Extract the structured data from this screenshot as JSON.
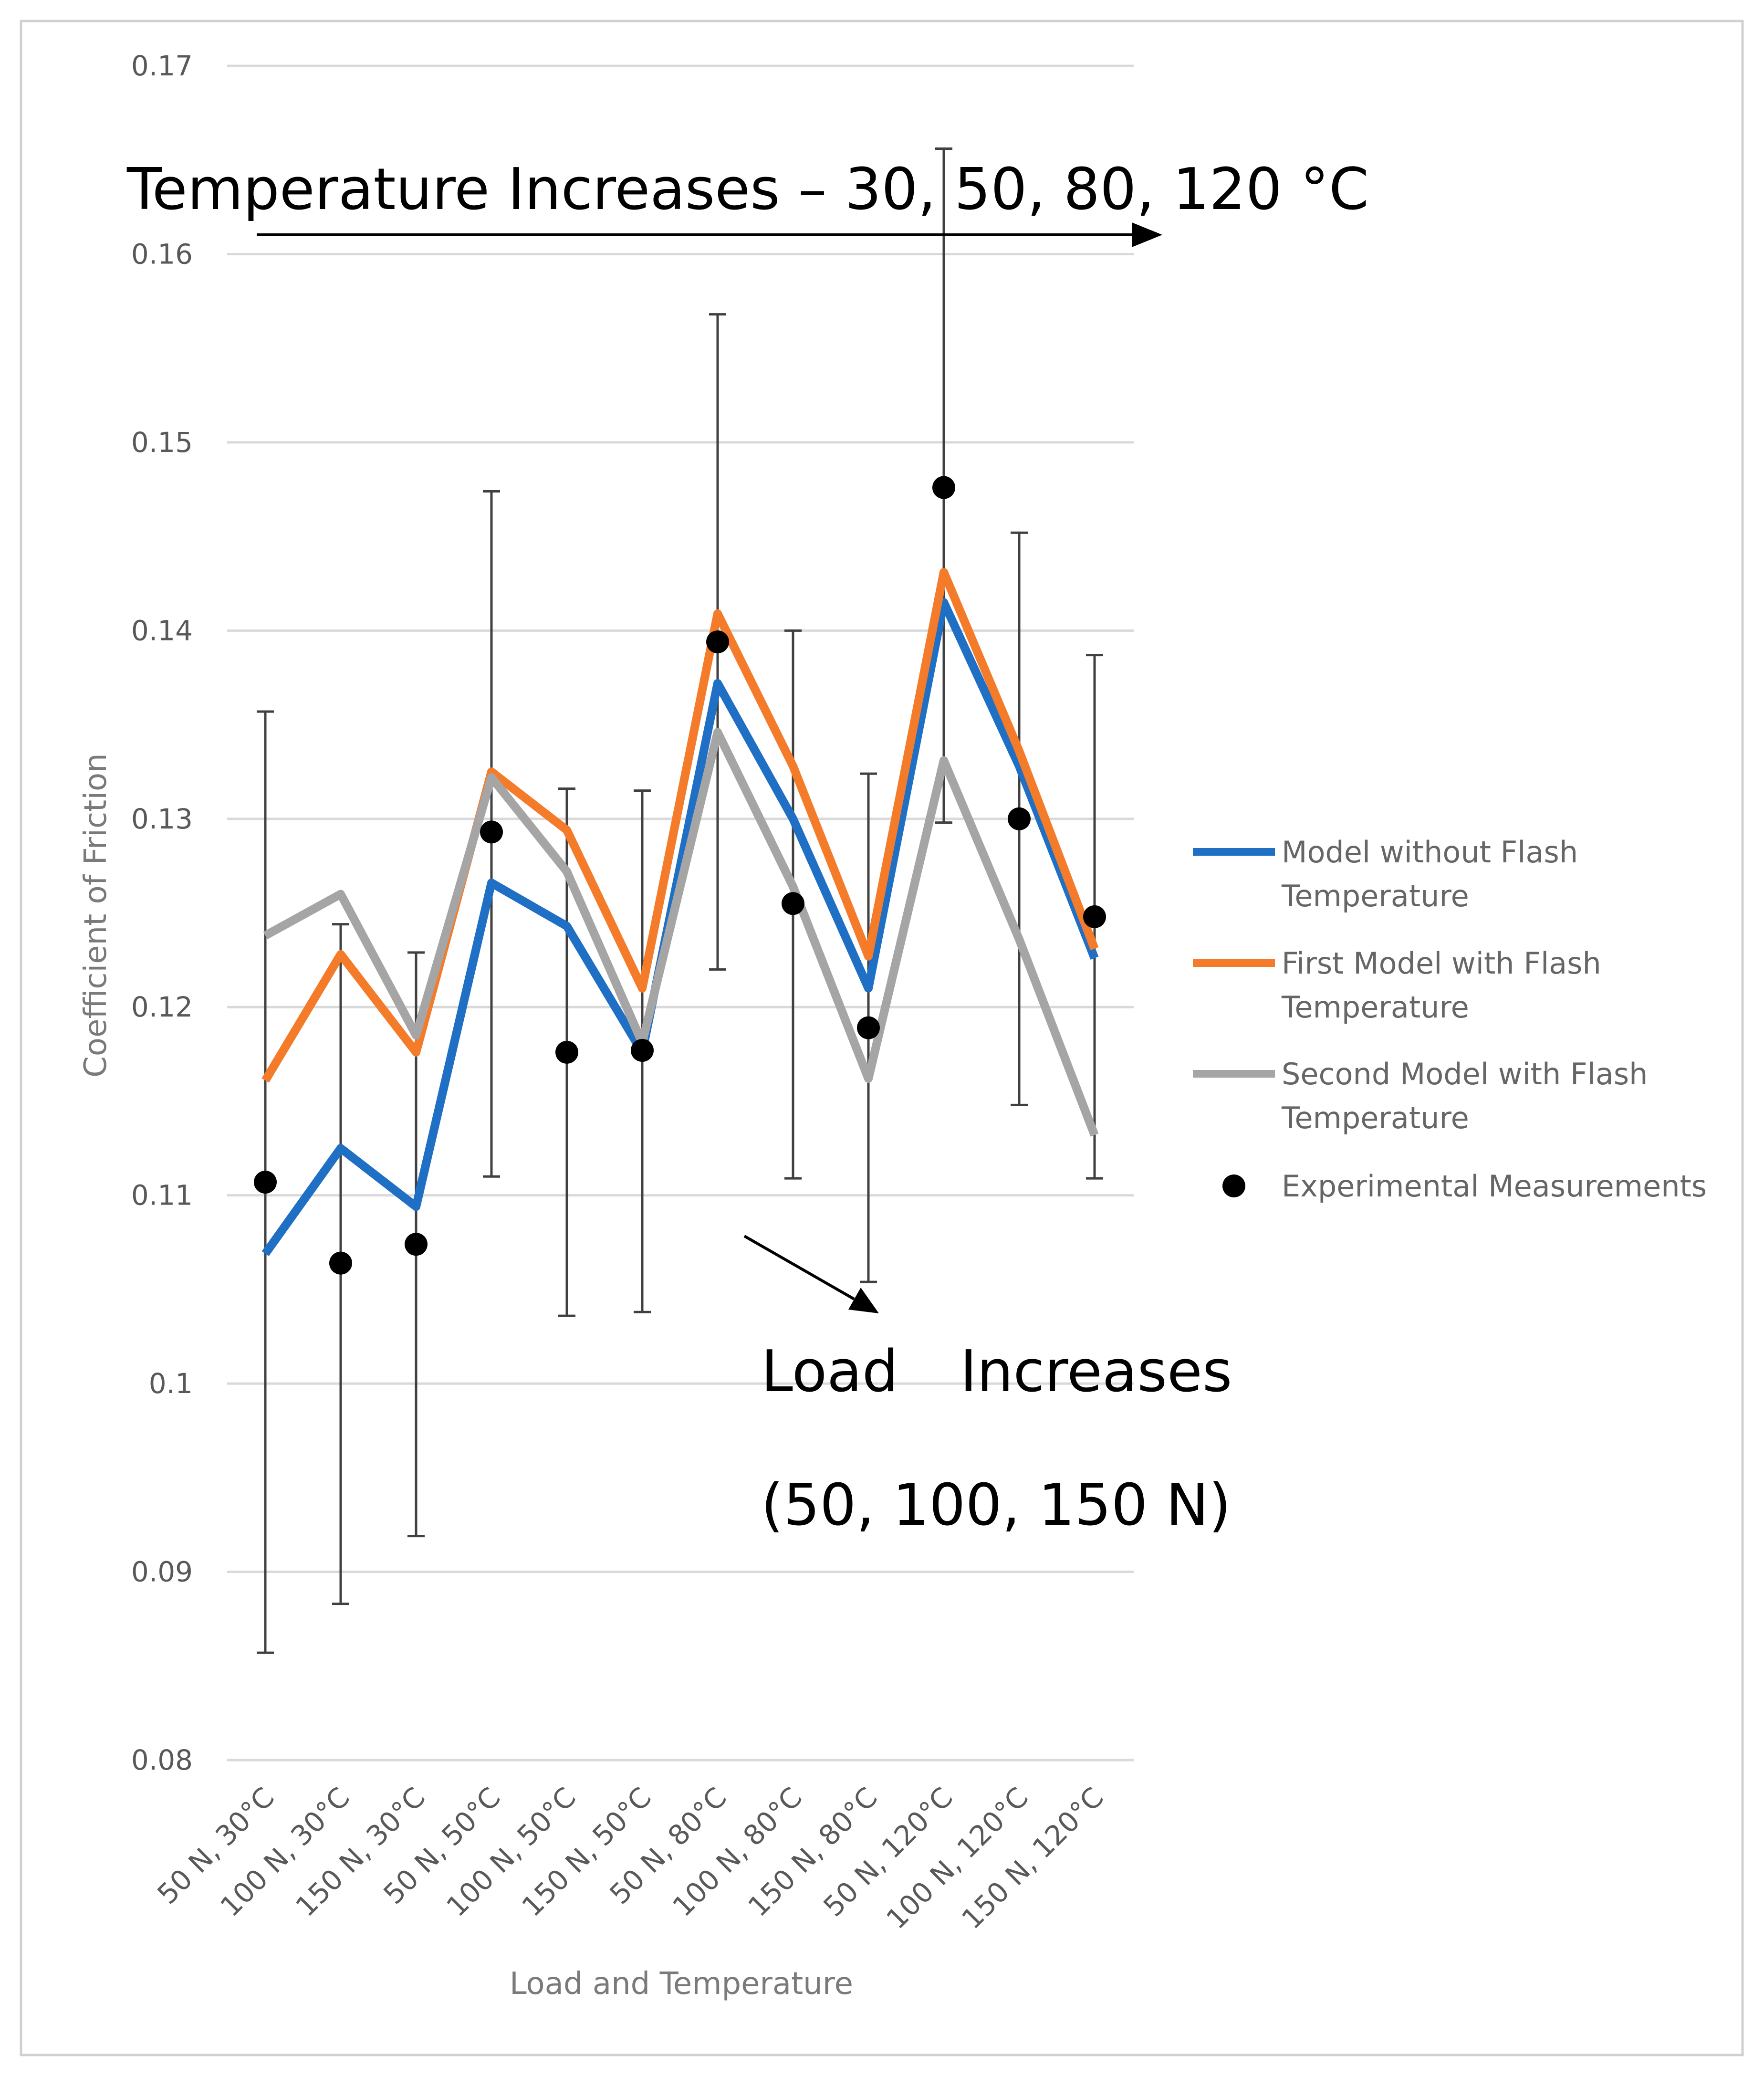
{
  "chart_data": {
    "type": "line",
    "title": "",
    "xlabel": "Load and Temperature",
    "ylabel": "Coefficient of Friction",
    "ylim": [
      0.08,
      0.17
    ],
    "yticks": [
      "0.08",
      "0.09",
      "0.1",
      "0.11",
      "0.12",
      "0.13",
      "0.14",
      "0.15",
      "0.16",
      "0.17"
    ],
    "grid": true,
    "legend_position": "right",
    "categories": [
      "50 N, 30°C",
      "100 N, 30°C",
      "150 N, 30°C",
      "50 N, 50°C",
      "100 N, 50°C",
      "150 N, 50°C",
      "50 N, 80°C",
      "100 N, 80°C",
      "150 N, 80°C",
      "50 N, 120°C",
      "100 N, 120°C",
      "150 N, 120°C"
    ],
    "series": [
      {
        "name": "Model without Flash Temperature",
        "legend_lines": [
          "Model without Flash",
          "Temperature"
        ],
        "color": "#1f6fc5",
        "kind": "line",
        "values": [
          0.1069,
          0.1125,
          0.1094,
          0.1266,
          0.1243,
          0.1176,
          0.1372,
          0.13,
          0.121,
          0.1415,
          0.1328,
          0.1226
        ]
      },
      {
        "name": "First Model with Flash Temperature",
        "legend_lines": [
          "First Model with Flash",
          "Temperature"
        ],
        "color": "#f47b2a",
        "kind": "line",
        "values": [
          0.1161,
          0.1228,
          0.1176,
          0.1325,
          0.1294,
          0.121,
          0.1409,
          0.1328,
          0.1227,
          0.1431,
          0.1336,
          0.1231
        ]
      },
      {
        "name": "Second Model with Flash Temperature",
        "legend_lines": [
          "Second Model with Flash",
          "Temperature"
        ],
        "color": "#a5a5a5",
        "kind": "line",
        "values": [
          0.1238,
          0.126,
          0.1185,
          0.1322,
          0.1272,
          0.1181,
          0.1346,
          0.1264,
          0.1162,
          0.1331,
          0.1236,
          0.1132
        ]
      },
      {
        "name": "Experimental Measurements",
        "legend_lines": [
          "Experimental Measurements"
        ],
        "color": "#000000",
        "kind": "scatter",
        "values": [
          0.1107,
          0.1064,
          0.1074,
          0.1293,
          0.1176,
          0.1177,
          0.1394,
          0.1255,
          0.1189,
          0.1476,
          0.13,
          0.1248
        ],
        "error_low": [
          0.0857,
          0.0883,
          0.0919,
          0.111,
          0.1036,
          0.1038,
          0.122,
          0.1109,
          0.1054,
          0.1298,
          0.1148,
          0.1109
        ],
        "error_high": [
          0.1357,
          0.1244,
          0.1229,
          0.1474,
          0.1316,
          0.1315,
          0.1568,
          0.14,
          0.1324,
          0.1656,
          0.1452,
          0.1387
        ]
      }
    ],
    "annotations": [
      "Temperature Increases – 30, 50, 80, 120 °C",
      "Load",
      "Increases",
      "(50, 100, 150 N)"
    ]
  }
}
